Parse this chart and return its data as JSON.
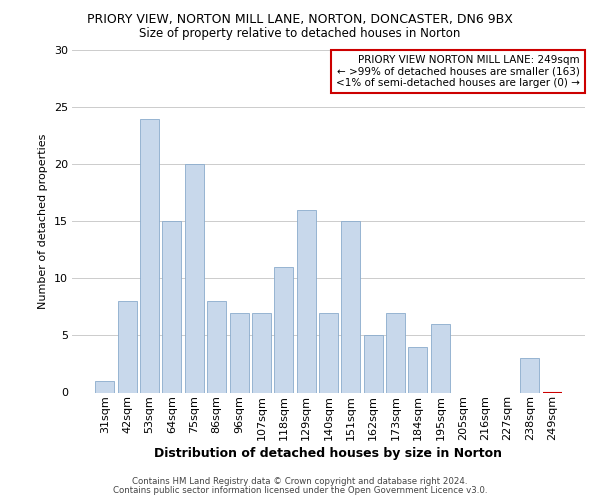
{
  "title": "PRIORY VIEW, NORTON MILL LANE, NORTON, DONCASTER, DN6 9BX",
  "subtitle": "Size of property relative to detached houses in Norton",
  "xlabel": "Distribution of detached houses by size in Norton",
  "ylabel": "Number of detached properties",
  "bar_color": "#c8d8eb",
  "bar_edgecolor": "#8aabcc",
  "categories": [
    "31sqm",
    "42sqm",
    "53sqm",
    "64sqm",
    "75sqm",
    "86sqm",
    "96sqm",
    "107sqm",
    "118sqm",
    "129sqm",
    "140sqm",
    "151sqm",
    "162sqm",
    "173sqm",
    "184sqm",
    "195sqm",
    "205sqm",
    "216sqm",
    "227sqm",
    "238sqm",
    "249sqm"
  ],
  "values": [
    1,
    8,
    24,
    15,
    20,
    8,
    7,
    7,
    11,
    16,
    7,
    15,
    5,
    7,
    4,
    6,
    0,
    0,
    0,
    3,
    0
  ],
  "ylim": [
    0,
    30
  ],
  "yticks": [
    0,
    5,
    10,
    15,
    20,
    25,
    30
  ],
  "annotation_box_text_line1": "PRIORY VIEW NORTON MILL LANE: 249sqm",
  "annotation_box_text_line2": "← >99% of detached houses are smaller (163)",
  "annotation_box_text_line3": "<1% of semi-detached houses are larger (0) →",
  "annotation_box_color": "#ffffff",
  "annotation_box_edgecolor": "#cc0000",
  "highlight_bar_index": 20,
  "highlight_bar_color": "#cc0000",
  "footnote1": "Contains HM Land Registry data © Crown copyright and database right 2024.",
  "footnote2": "Contains public sector information licensed under the Open Government Licence v3.0.",
  "background_color": "#ffffff",
  "grid_color": "#cccccc"
}
